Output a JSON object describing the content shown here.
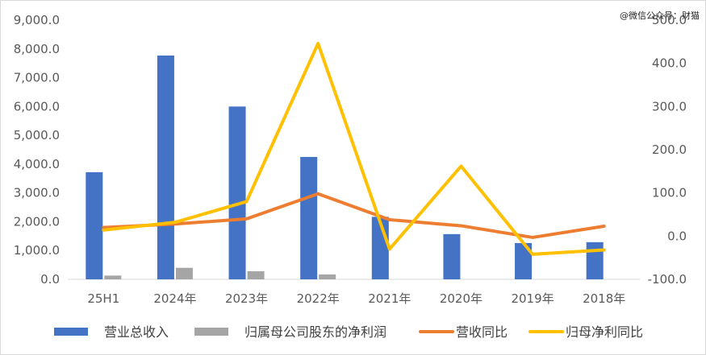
{
  "watermark": "@微信公众号：财猫",
  "chart_data": {
    "type": "bar",
    "title": "",
    "categories": [
      "25H1",
      "2024年",
      "2023年",
      "2022年",
      "2021年",
      "2020年",
      "2019年",
      "2018年"
    ],
    "series": [
      {
        "name": "营业总收入",
        "type": "bar",
        "axis": "left",
        "color": "#4472c4",
        "values": [
          3720,
          7770,
          6000,
          4250,
          2170,
          1570,
          1260,
          1290
        ]
      },
      {
        "name": "归属母公司股东的净利润",
        "type": "bar",
        "axis": "left",
        "color": "#a5a5a5",
        "values": [
          130,
          400,
          280,
          170,
          0,
          0,
          0,
          0
        ]
      },
      {
        "name": "营收同比",
        "type": "line",
        "axis": "right",
        "color": "#ed7d31",
        "values": [
          20,
          28,
          40,
          98,
          38,
          24,
          -3,
          23
        ]
      },
      {
        "name": "归母净利同比",
        "type": "line",
        "axis": "right",
        "color": "#ffc000",
        "values": [
          14,
          32,
          80,
          446,
          -30,
          162,
          -42,
          -32
        ]
      }
    ],
    "left_axis": {
      "min": 0,
      "max": 9000,
      "step": 1000,
      "ticks": [
        "0.0",
        "1,000.0",
        "2,000.0",
        "3,000.0",
        "4,000.0",
        "5,000.0",
        "6,000.0",
        "7,000.0",
        "8,000.0",
        "9,000.0"
      ]
    },
    "right_axis": {
      "min": -100,
      "max": 500,
      "step": 100,
      "ticks": [
        "-100.0",
        "0.0",
        "100.0",
        "200.0",
        "300.0",
        "400.0",
        "500.0"
      ]
    },
    "legend_position": "bottom",
    "grid": false
  }
}
